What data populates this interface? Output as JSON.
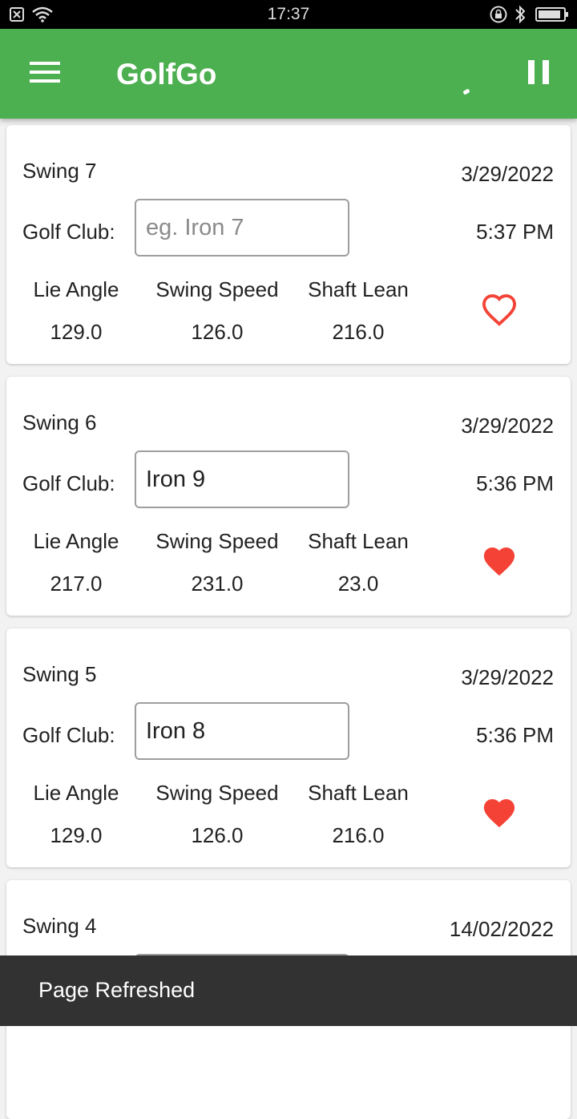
{
  "status_bar": {
    "time": "17:37",
    "left_icons": [
      "close-box-icon",
      "wifi-icon"
    ],
    "right_icons": [
      "lock-rotation-icon",
      "bluetooth-icon",
      "battery-icon"
    ]
  },
  "app_bar": {
    "title": "GolfGo",
    "menu_icon": "hamburger-menu-icon",
    "action_icon": "pause-icon",
    "color": "#4caf50"
  },
  "labels": {
    "golf_club": "Golf Club:",
    "lie_angle": "Lie Angle",
    "swing_speed": "Swing Speed",
    "shaft_lean": "Shaft Lean"
  },
  "swings": [
    {
      "title": "Swing 7",
      "date": "3/29/2022",
      "time": "5:37 PM",
      "club_value": "",
      "club_placeholder": "eg. Iron 7",
      "lie_angle": "129.0",
      "swing_speed": "126.0",
      "shaft_lean": "216.0",
      "favorite": false
    },
    {
      "title": "Swing 6",
      "date": "3/29/2022",
      "time": "5:36 PM",
      "club_value": "Iron 9",
      "club_placeholder": "eg. Iron 7",
      "lie_angle": "217.0",
      "swing_speed": "231.0",
      "shaft_lean": "23.0",
      "favorite": true
    },
    {
      "title": "Swing 5",
      "date": "3/29/2022",
      "time": "5:36 PM",
      "club_value": "Iron 8",
      "club_placeholder": "eg. Iron 7",
      "lie_angle": "129.0",
      "swing_speed": "126.0",
      "shaft_lean": "216.0",
      "favorite": true
    },
    {
      "title": "Swing 4",
      "date": "14/02/2022"
    }
  ],
  "heart_color": "#f44336",
  "snackbar": {
    "message": "Page Refreshed"
  }
}
